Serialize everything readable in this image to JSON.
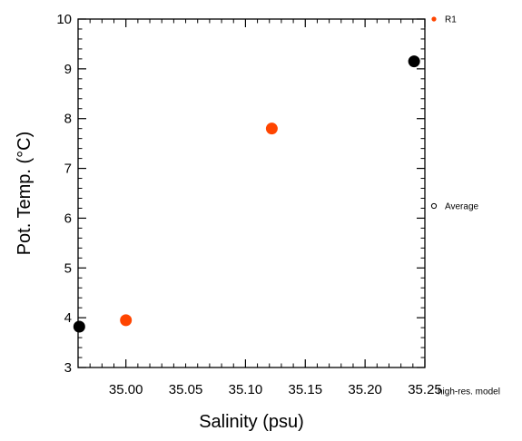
{
  "chart_data": {
    "type": "scatter",
    "xlabel": "Salinity (psu)",
    "ylabel": "Pot. Temp. (°C)",
    "xlim": [
      34.96,
      35.25
    ],
    "ylim": [
      3,
      10
    ],
    "x_ticks": [
      35.0,
      35.05,
      35.1,
      35.15,
      35.2,
      35.25
    ],
    "x_tick_labels": [
      "35.00",
      "35.05",
      "35.10",
      "35.15",
      "35.20",
      "35.25"
    ],
    "y_ticks": [
      3,
      4,
      5,
      6,
      7,
      8,
      9,
      10
    ],
    "y_tick_labels": [
      "3",
      "4",
      "5",
      "6",
      "7",
      "8",
      "9",
      "10"
    ],
    "grid": false,
    "legend_placement": "right, outside plot",
    "series": [
      {
        "name": "R1",
        "color": "#ff4500",
        "points": [
          {
            "x": 35.0,
            "y": 3.95
          },
          {
            "x": 35.122,
            "y": 7.8
          }
        ]
      },
      {
        "name": "Average",
        "color": "#000000",
        "legend_hollow": true,
        "points": [
          {
            "x": 34.961,
            "y": 3.82
          },
          {
            "x": 35.241,
            "y": 9.15
          }
        ]
      }
    ],
    "legend": [
      {
        "label": "R1",
        "color": "#ff4500",
        "marker": "filled-circle"
      },
      {
        "label": "Average",
        "color": "#000000",
        "marker": "hollow-circle"
      },
      {
        "label": "high-res. model",
        "color": "#000000",
        "marker": "none"
      }
    ]
  }
}
